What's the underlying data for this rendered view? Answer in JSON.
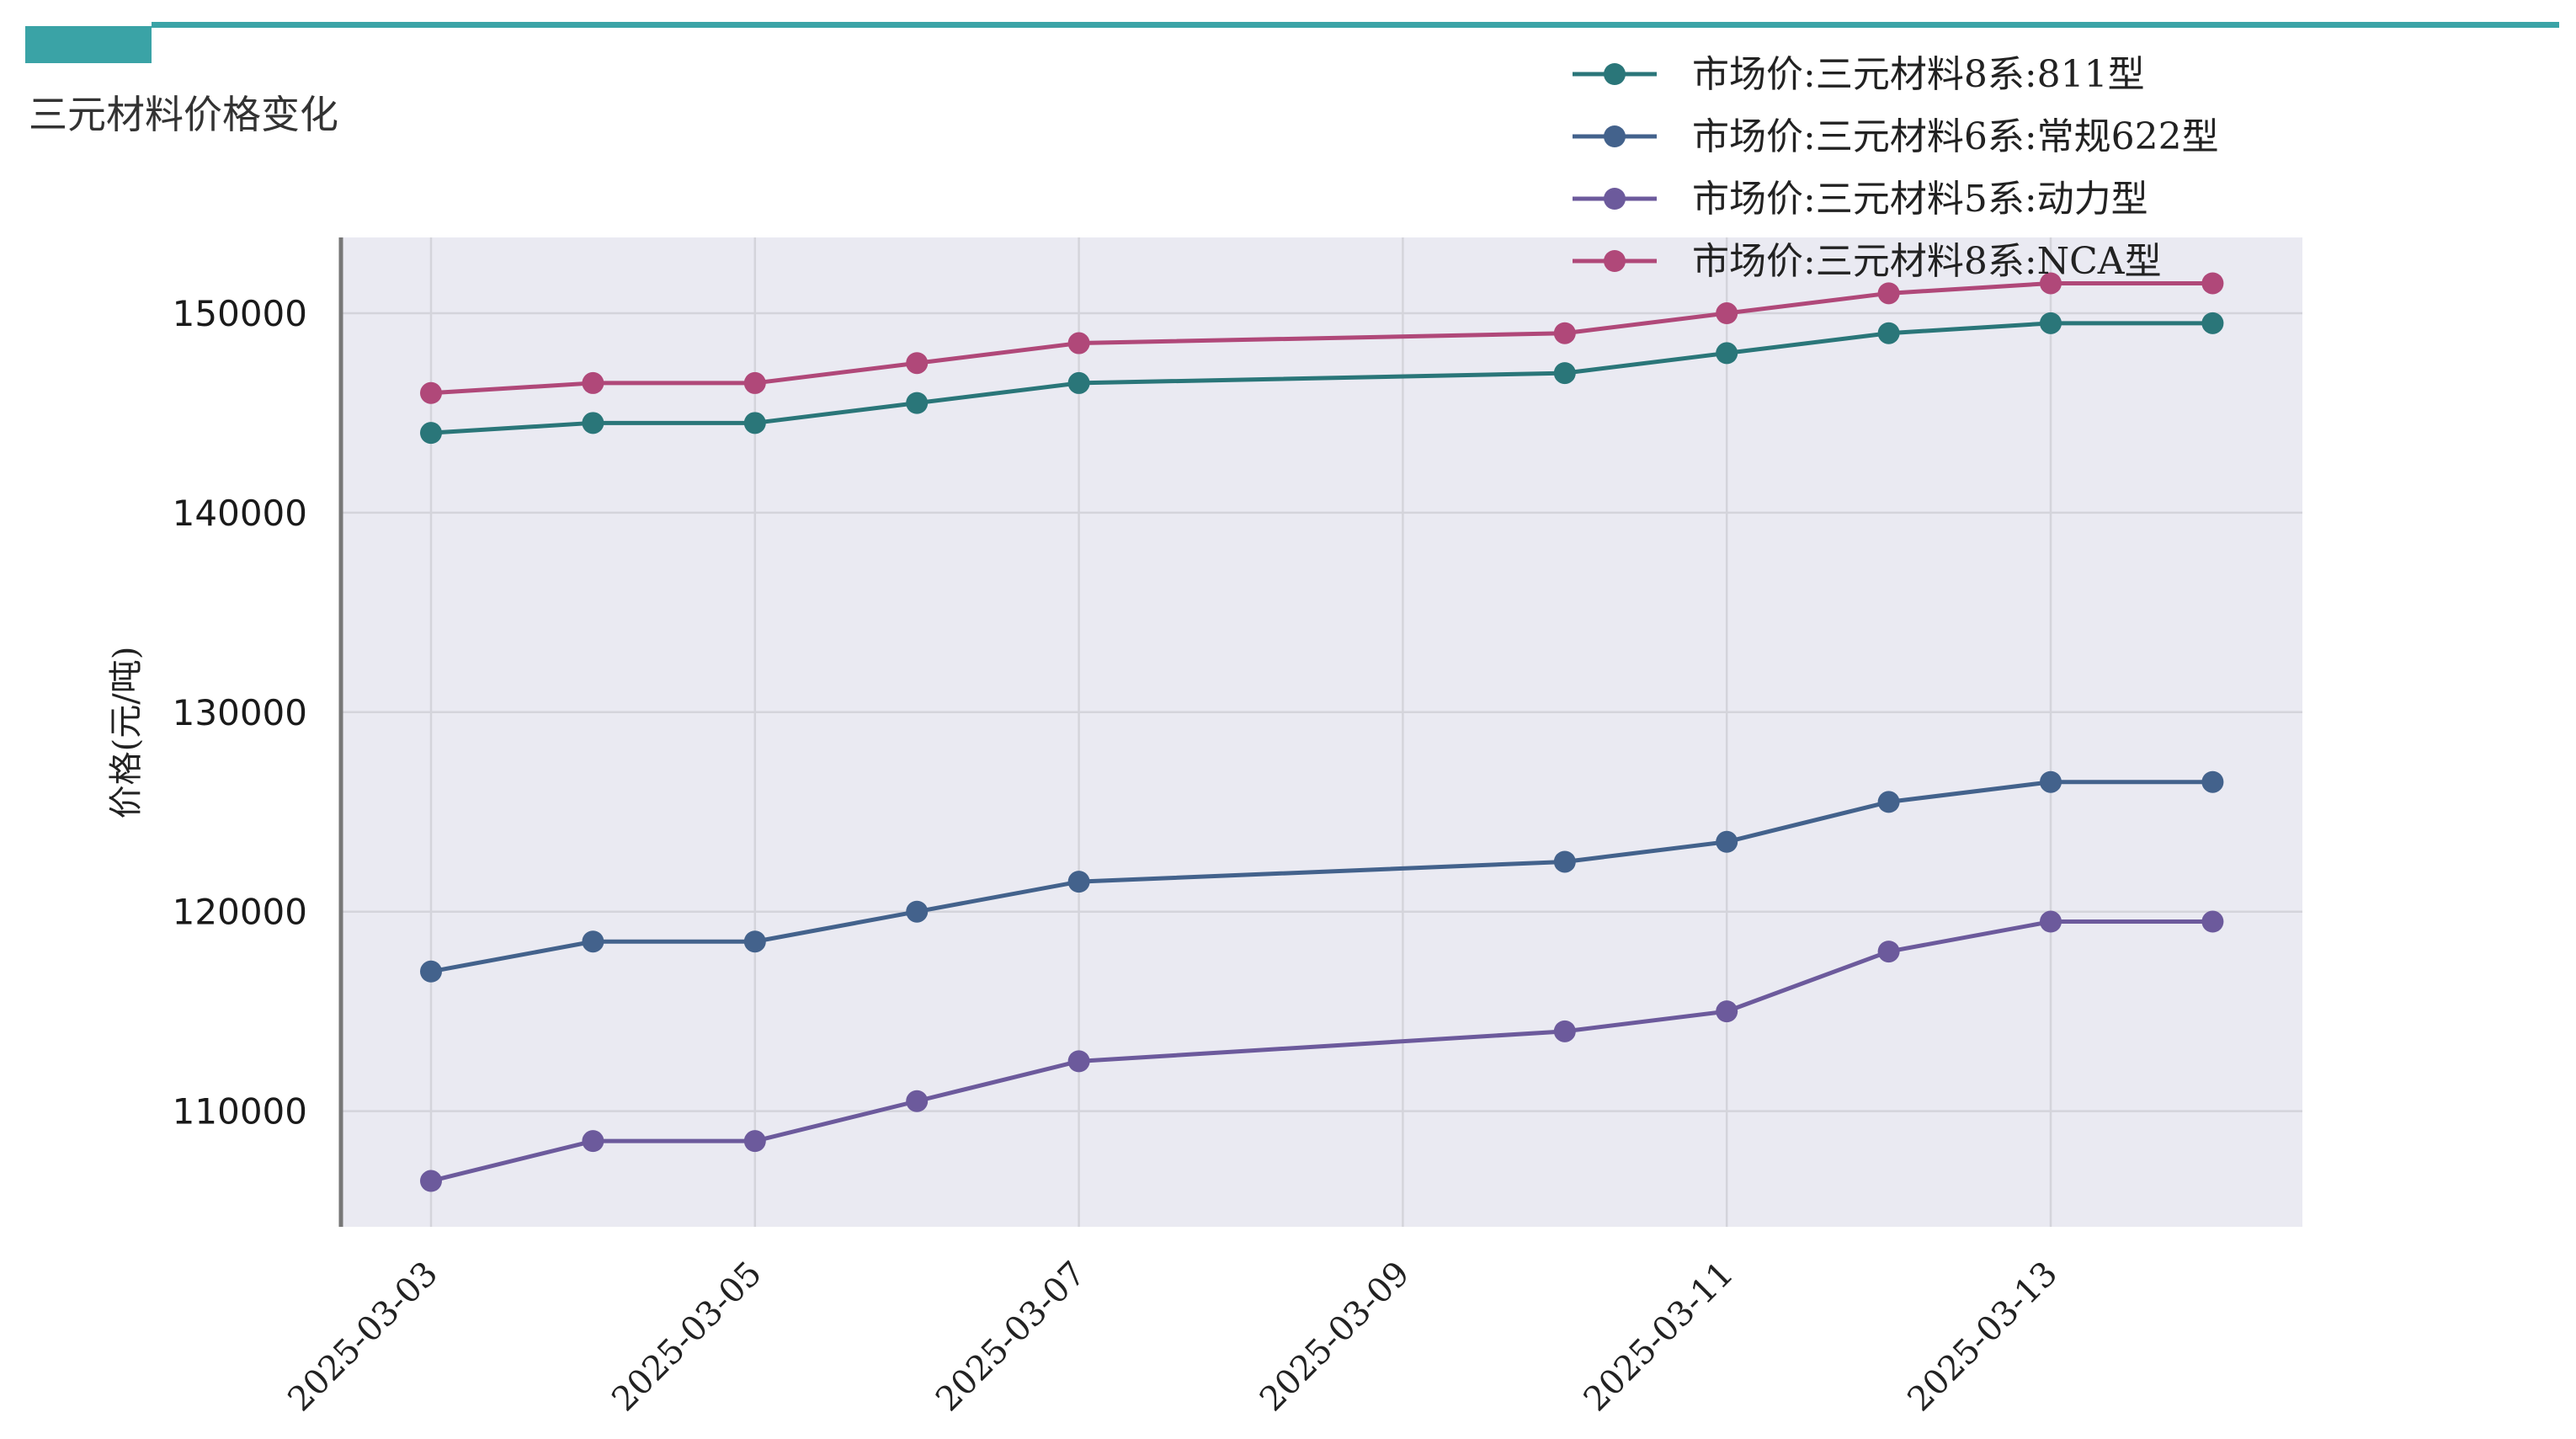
{
  "page": {
    "title": "三元材料价格变化",
    "accent_color": "#3aa3a6"
  },
  "chart_data": {
    "type": "line",
    "title": "",
    "xlabel": "",
    "ylabel": "价格(元/吨)",
    "x": [
      "2025-03-03",
      "2025-03-04",
      "2025-03-05",
      "2025-03-06",
      "2025-03-07",
      "2025-03-10",
      "2025-03-11",
      "2025-03-12",
      "2025-03-13",
      "2025-03-14"
    ],
    "xticks": [
      "2025-03-03",
      "2025-03-05",
      "2025-03-07",
      "2025-03-09",
      "2025-03-11",
      "2025-03-13"
    ],
    "yticks": [
      110000,
      120000,
      130000,
      140000,
      150000
    ],
    "ylim": [
      104200,
      153800
    ],
    "grid": true,
    "legend_position": "top-right",
    "background_color": "#eaeaf2",
    "series": [
      {
        "name": "市场价:三元材料8系:811型",
        "color": "#2a7679",
        "values": [
          144000,
          144500,
          144500,
          145500,
          146500,
          147000,
          148000,
          149000,
          149500,
          149500
        ]
      },
      {
        "name": "市场价:三元材料6系:常规622型",
        "color": "#43628c",
        "values": [
          117000,
          118500,
          118500,
          120000,
          121500,
          122500,
          123500,
          125500,
          126500,
          126500
        ]
      },
      {
        "name": "市场价:三元材料5系:动力型",
        "color": "#6c5a9c",
        "values": [
          106500,
          108500,
          108500,
          110500,
          112500,
          114000,
          115000,
          118000,
          119500,
          119500
        ]
      },
      {
        "name": "市场价:三元材料8系:NCA型",
        "color": "#b04879",
        "values": [
          146000,
          146500,
          146500,
          147500,
          148500,
          149000,
          150000,
          151000,
          151500,
          151500
        ]
      }
    ]
  }
}
